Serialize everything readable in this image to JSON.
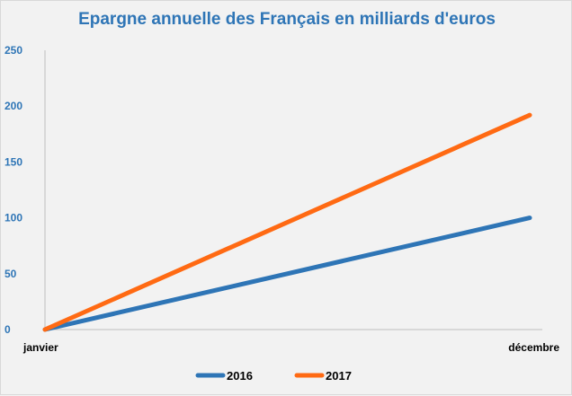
{
  "chart_data": {
    "type": "line",
    "title": "Epargne annuelle des Français en milliards d'euros",
    "categories": [
      "janvier",
      "décembre"
    ],
    "series": [
      {
        "name": "2016",
        "values": [
          0,
          100
        ],
        "color": "#2e75b6"
      },
      {
        "name": "2017",
        "values": [
          0,
          192
        ],
        "color": "#ff6a13"
      }
    ],
    "ylim": [
      0,
      250
    ],
    "yticks": [
      0,
      50,
      100,
      150,
      200,
      250
    ],
    "grid": false,
    "legend_position": "bottom",
    "axis_label_color": "#2e75b6",
    "title_color": "#2e75b6"
  }
}
